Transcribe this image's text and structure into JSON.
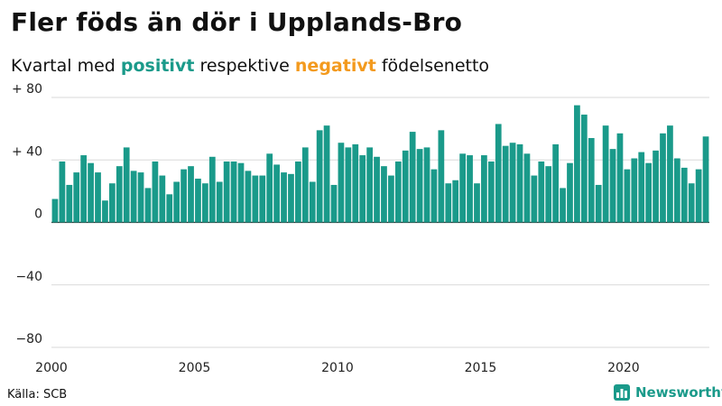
{
  "header": {
    "title": "Fler föds än dör i Upplands-Bro",
    "subtitle_prefix": "Kvartal med ",
    "subtitle_positive": "positivt",
    "subtitle_middle": " respektive ",
    "subtitle_negative": "negativt",
    "subtitle_suffix": " födelsenetto"
  },
  "footer": {
    "source": "Källa: SCB",
    "brand": "Newsworthy"
  },
  "colors": {
    "positive": "#1a9a8a",
    "negative": "#f39a1e",
    "grid": "#d9d9d9",
    "axis": "#333333"
  },
  "chart_data": {
    "type": "bar",
    "title": "Fler föds än dör i Upplands-Bro",
    "x_start": "2000 Q1",
    "ylim": [
      -80,
      80
    ],
    "y_ticks": [
      80,
      40,
      0,
      -40,
      -80
    ],
    "y_tick_labels": [
      "+ 80",
      "+ 40",
      "0",
      "−40",
      "−80"
    ],
    "x_ticks": [
      "2000",
      "2005",
      "2010",
      "2015",
      "2020"
    ],
    "grid": true,
    "values": [
      15,
      39,
      24,
      32,
      43,
      38,
      32,
      14,
      25,
      36,
      48,
      33,
      32,
      22,
      39,
      30,
      18,
      26,
      34,
      36,
      28,
      25,
      42,
      26,
      39,
      39,
      38,
      33,
      30,
      30,
      44,
      37,
      32,
      31,
      39,
      48,
      26,
      59,
      62,
      24,
      51,
      48,
      50,
      43,
      48,
      42,
      36,
      30,
      39,
      46,
      58,
      47,
      48,
      34,
      59,
      25,
      27,
      44,
      43,
      25,
      43,
      39,
      63,
      49,
      51,
      50,
      44,
      30,
      39,
      36,
      50,
      22,
      38,
      75,
      69,
      54,
      24,
      62,
      47,
      57,
      34,
      41,
      45,
      38,
      46,
      57,
      62,
      41,
      35,
      25,
      34,
      55
    ]
  }
}
